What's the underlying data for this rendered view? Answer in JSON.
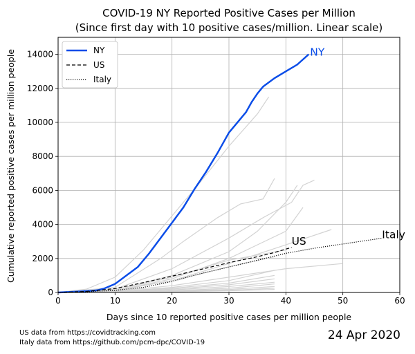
{
  "chart_data": {
    "type": "line",
    "title": "COVID-19 NY Reported Positive Cases per Million",
    "subtitle": "(Since first day with 10 positive cases/million. Linear scale)",
    "xlabel": "Days since 10 reported positive cases per million people",
    "ylabel": "Cumulative reported positive cases per million people",
    "xlim": [
      0,
      60
    ],
    "ylim": [
      0,
      15000
    ],
    "xticks": [
      0,
      10,
      20,
      30,
      40,
      50,
      60
    ],
    "yticks": [
      0,
      2000,
      4000,
      6000,
      8000,
      10000,
      12000,
      14000
    ],
    "grid": true,
    "legend_position": "top-left",
    "legend": [
      {
        "name": "NY",
        "style": "solid",
        "color": "#0b4de8"
      },
      {
        "name": "US",
        "style": "dashed",
        "color": "#000000"
      },
      {
        "name": "Italy",
        "style": "dotted",
        "color": "#000000"
      }
    ],
    "end_labels": {
      "ny": "NY",
      "us": "US",
      "italy": "Italy"
    },
    "series": [
      {
        "name": "NY",
        "color": "#0b4de8",
        "style": "solid",
        "x": [
          0,
          2,
          4,
          6,
          7,
          8,
          10,
          12,
          14,
          16,
          18,
          20,
          22,
          24,
          26,
          28,
          30,
          32,
          33,
          34,
          35,
          36,
          38,
          40,
          42,
          43,
          44
        ],
        "y": [
          0,
          30,
          60,
          100,
          140,
          220,
          500,
          1000,
          1500,
          2300,
          3200,
          4100,
          5000,
          6100,
          7100,
          8200,
          9400,
          10200,
          10600,
          11200,
          11700,
          12100,
          12600,
          13000,
          13400,
          13700,
          14000
        ]
      },
      {
        "name": "US",
        "color": "#000000",
        "style": "dashed",
        "x": [
          0,
          5,
          10,
          15,
          20,
          25,
          30,
          35,
          38,
          41
        ],
        "y": [
          0,
          60,
          230,
          580,
          960,
          1350,
          1750,
          2100,
          2350,
          2650
        ]
      },
      {
        "name": "Italy",
        "color": "#000000",
        "style": "dotted",
        "x": [
          0,
          5,
          10,
          15,
          20,
          25,
          30,
          35,
          40,
          45,
          50,
          57
        ],
        "y": [
          0,
          40,
          120,
          300,
          650,
          1100,
          1500,
          1900,
          2300,
          2600,
          2850,
          3200
        ]
      }
    ],
    "background_series": [
      {
        "x": [
          0,
          5,
          10,
          15,
          20,
          25,
          30,
          35,
          37
        ],
        "y": [
          0,
          200,
          900,
          2500,
          4500,
          6500,
          8600,
          10500,
          11500
        ]
      },
      {
        "x": [
          0,
          10,
          18,
          22,
          28,
          32,
          36,
          38
        ],
        "y": [
          0,
          300,
          2000,
          3000,
          4400,
          5200,
          5500,
          6700
        ]
      },
      {
        "x": [
          0,
          10,
          20,
          30,
          36,
          41,
          43,
          45
        ],
        "y": [
          0,
          200,
          1400,
          3200,
          4400,
          5300,
          6300,
          6600
        ]
      },
      {
        "x": [
          0,
          10,
          20,
          30,
          35,
          40,
          42
        ],
        "y": [
          0,
          150,
          1000,
          2400,
          3600,
          5300,
          6300
        ]
      },
      {
        "x": [
          0,
          10,
          20,
          30,
          40,
          43
        ],
        "y": [
          0,
          100,
          800,
          2000,
          3600,
          5000
        ]
      },
      {
        "x": [
          0,
          10,
          20,
          30,
          40,
          48
        ],
        "y": [
          0,
          100,
          700,
          1700,
          2800,
          3700
        ]
      },
      {
        "x": [
          0,
          10,
          20,
          30,
          40
        ],
        "y": [
          0,
          150,
          900,
          1900,
          2500
        ]
      },
      {
        "x": [
          0,
          10,
          20,
          30,
          38
        ],
        "y": [
          0,
          120,
          700,
          1500,
          2100
        ]
      },
      {
        "x": [
          0,
          10,
          20,
          30,
          40,
          50
        ],
        "y": [
          0,
          80,
          400,
          900,
          1400,
          1700
        ]
      },
      {
        "x": [
          0,
          10,
          20,
          30,
          38
        ],
        "y": [
          0,
          50,
          300,
          700,
          1300
        ]
      },
      {
        "x": [
          0,
          10,
          20,
          30,
          38
        ],
        "y": [
          0,
          40,
          250,
          550,
          1000
        ]
      },
      {
        "x": [
          0,
          10,
          20,
          30,
          38
        ],
        "y": [
          0,
          30,
          200,
          450,
          800
        ]
      },
      {
        "x": [
          0,
          10,
          20,
          30,
          38
        ],
        "y": [
          0,
          25,
          150,
          350,
          600
        ]
      },
      {
        "x": [
          0,
          10,
          20,
          30,
          38
        ],
        "y": [
          0,
          20,
          100,
          250,
          500
        ]
      },
      {
        "x": [
          0,
          10,
          20,
          30,
          38
        ],
        "y": [
          0,
          15,
          80,
          180,
          350
        ]
      },
      {
        "x": [
          0,
          10,
          20,
          30,
          38
        ],
        "y": [
          0,
          10,
          60,
          130,
          250
        ]
      },
      {
        "x": [
          0,
          10,
          20,
          30,
          38
        ],
        "y": [
          0,
          10,
          40,
          100,
          180
        ]
      }
    ]
  },
  "footer": {
    "line1": "US data from https://covidtracking.com",
    "line2": "Italy data from https://github.com/pcm-dpc/COVID-19",
    "date": "24 Apr 2020"
  }
}
